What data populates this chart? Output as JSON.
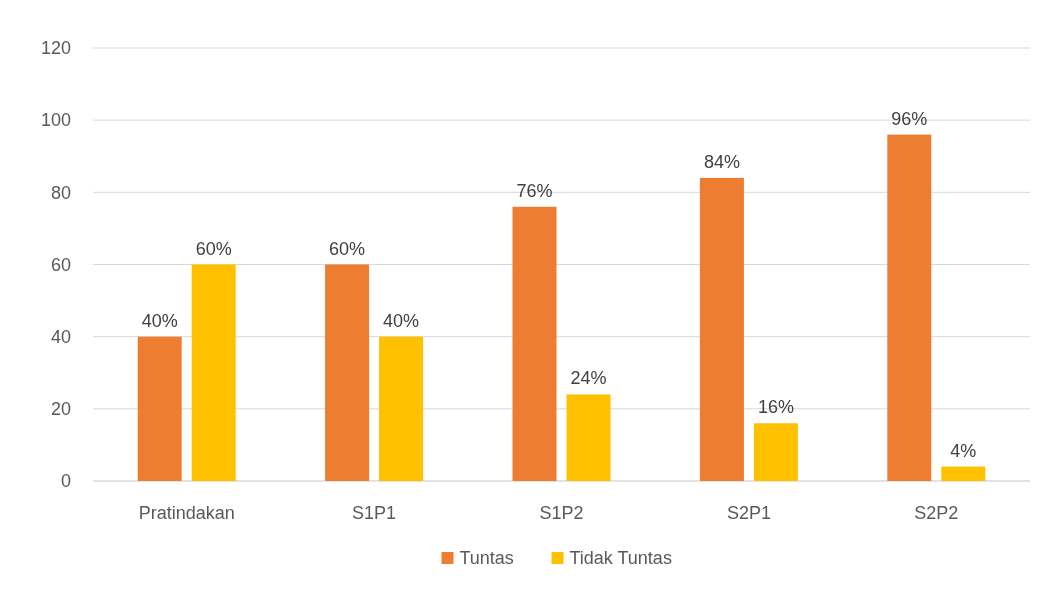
{
  "chart_data": {
    "type": "bar",
    "categories": [
      "Pratindakan",
      "S1P1",
      "S1P2",
      "S2P1",
      "S2P2"
    ],
    "series": [
      {
        "name": "Tuntas",
        "color": "#ed7d31",
        "values": [
          40,
          60,
          76,
          84,
          96
        ],
        "value_labels": [
          "40%",
          "60%",
          "76%",
          "84%",
          "96%"
        ]
      },
      {
        "name": "Tidak Tuntas",
        "color": "#ffc000",
        "values": [
          60,
          40,
          24,
          16,
          4
        ],
        "value_labels": [
          "60%",
          "40%",
          "24%",
          "16%",
          "4%"
        ]
      }
    ],
    "ylim": [
      0,
      120
    ],
    "yticks": [
      0,
      20,
      40,
      60,
      80,
      100,
      120
    ],
    "grid": "y",
    "legend": "bottom"
  }
}
